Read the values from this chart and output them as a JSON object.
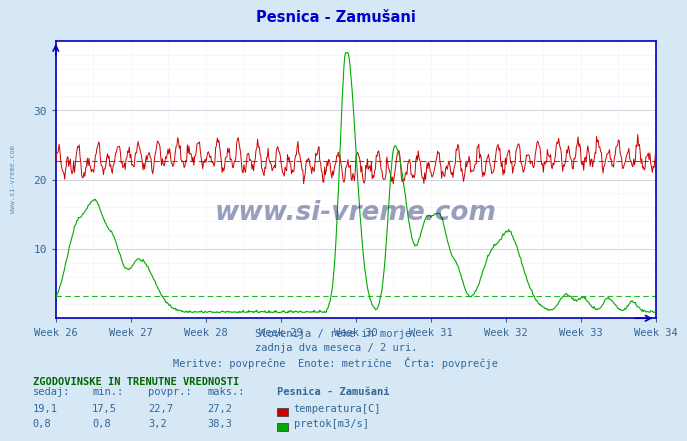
{
  "title": "Pesnica - Zamušani",
  "title_color": "#0000cc",
  "bg_color": "#d6e8f5",
  "plot_bg_color": "#ffffff",
  "xlabel_lines": [
    "Slovenija / reke in morje.",
    "zadnja dva meseca / 2 uri.",
    "Meritve: povprečne  Enote: metrične  Črta: povprečje"
  ],
  "xlabel_color": "#336699",
  "ylabel_left_color": "#336699",
  "x_tick_labels": [
    "Week 26",
    "Week 27",
    "Week 28",
    "Week 29",
    "Week 30",
    "Week 31",
    "Week 32",
    "Week 33",
    "Week 34"
  ],
  "x_tick_color": "#336699",
  "ylim_left": [
    0,
    40
  ],
  "n_points": 744,
  "temp_color": "#cc0000",
  "temp_avg": 22.7,
  "flow_color": "#00aa00",
  "flow_avg": 3.2,
  "legend_title": "Pesnica - Zamušani",
  "legend_temp_label": "temperatura[C]",
  "legend_flow_label": "pretok[m3/s]",
  "table_header": "ZGODOVINSKE IN TRENUTNE VREDNOSTI",
  "table_cols": [
    "sedaj:",
    "min.:",
    "povpr.:",
    "maks.:"
  ],
  "table_row1": [
    "19,1",
    "17,5",
    "22,7",
    "27,2"
  ],
  "table_row2": [
    "0,8",
    "0,8",
    "3,2",
    "38,3"
  ],
  "table_color": "#336699",
  "watermark": "www.si-vreme.com",
  "spine_color": "#0000bb"
}
